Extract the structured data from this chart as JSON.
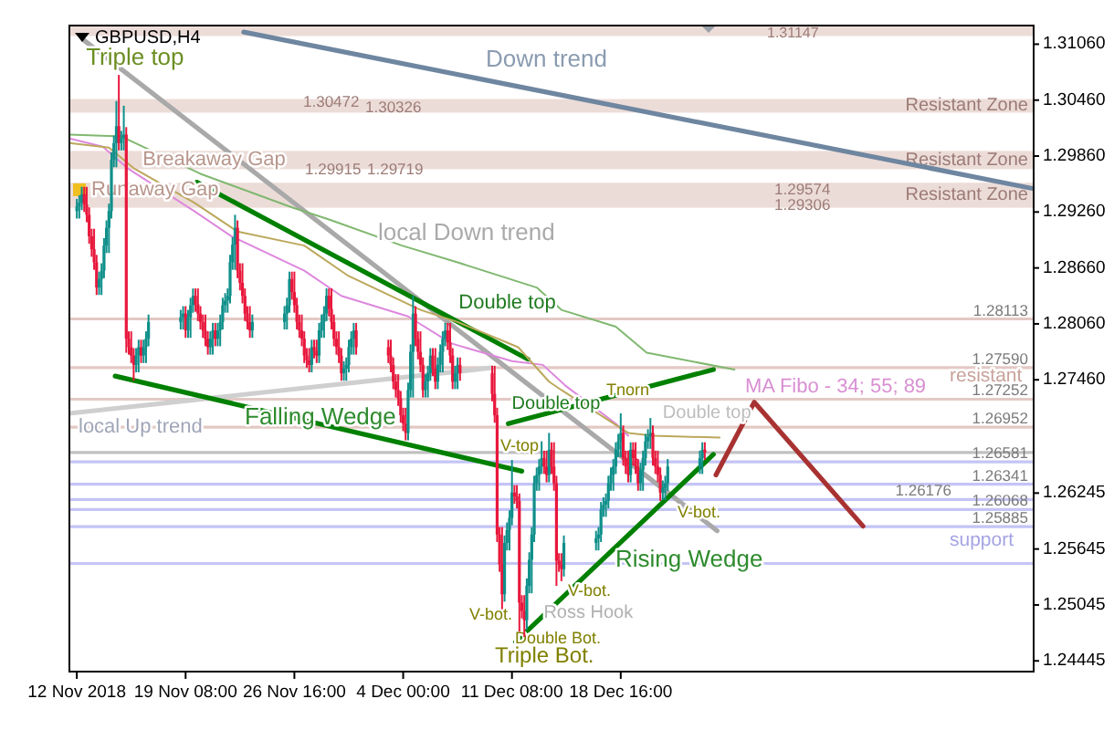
{
  "chart_data": {
    "type": "candlestick",
    "title": "GBPUSD,H4",
    "x": [
      "2018-11-12T00:00",
      "2018-11-12T04:00",
      "2018-11-12T08:00",
      "2018-11-12T12:00",
      "2018-11-12T16:00",
      "2018-11-12T20:00",
      "2018-11-13T00:00",
      "2018-11-13T04:00",
      "2018-11-13T08:00",
      "2018-11-13T12:00",
      "2018-11-13T16:00",
      "2018-11-13T20:00",
      "2018-11-14T00:00",
      "2018-11-14T04:00",
      "2018-11-14T08:00",
      "2018-11-14T12:00",
      "2018-11-14T16:00",
      "2018-11-14T20:00",
      "2018-11-15T00:00",
      "2018-11-15T04:00",
      "2018-11-15T08:00",
      "2018-11-15T12:00",
      "2018-11-15T16:00",
      "2018-11-15T20:00",
      "2018-11-16T00:00",
      "2018-11-16T04:00",
      "2018-11-16T08:00",
      "2018-11-16T12:00",
      "2018-11-16T16:00",
      "2018-11-16T20:00",
      "2018-11-19T00:00",
      "2018-11-19T04:00",
      "2018-11-19T08:00",
      "2018-11-19T12:00",
      "2018-11-19T16:00",
      "2018-11-19T20:00",
      "2018-11-20T00:00",
      "2018-11-20T04:00",
      "2018-11-20T08:00",
      "2018-11-20T12:00",
      "2018-11-20T16:00",
      "2018-11-20T20:00",
      "2018-11-21T00:00",
      "2018-11-21T04:00",
      "2018-11-21T08:00",
      "2018-11-21T12:00",
      "2018-11-21T16:00",
      "2018-11-21T20:00",
      "2018-11-22T00:00",
      "2018-11-22T04:00",
      "2018-11-22T08:00",
      "2018-11-22T12:00",
      "2018-11-22T16:00",
      "2018-11-22T20:00",
      "2018-11-23T00:00",
      "2018-11-23T04:00",
      "2018-11-23T08:00",
      "2018-11-23T12:00",
      "2018-11-23T16:00",
      "2018-11-23T20:00",
      "2018-11-26T00:00",
      "2018-11-26T04:00",
      "2018-11-26T08:00",
      "2018-11-26T12:00",
      "2018-11-26T16:00",
      "2018-11-26T20:00",
      "2018-11-27T00:00",
      "2018-11-27T04:00",
      "2018-11-27T08:00",
      "2018-11-27T12:00",
      "2018-11-27T16:00",
      "2018-11-27T20:00",
      "2018-11-28T00:00",
      "2018-11-28T04:00",
      "2018-11-28T08:00",
      "2018-11-28T12:00",
      "2018-11-28T16:00",
      "2018-11-28T20:00",
      "2018-11-29T00:00",
      "2018-11-29T04:00",
      "2018-11-29T08:00",
      "2018-11-29T12:00",
      "2018-11-29T16:00",
      "2018-11-29T20:00",
      "2018-11-30T00:00",
      "2018-11-30T04:00",
      "2018-11-30T08:00",
      "2018-11-30T12:00",
      "2018-11-30T16:00",
      "2018-11-30T20:00",
      "2018-12-03T00:00",
      "2018-12-03T04:00",
      "2018-12-03T08:00",
      "2018-12-03T12:00",
      "2018-12-03T16:00",
      "2018-12-03T20:00",
      "2018-12-04T00:00",
      "2018-12-04T04:00",
      "2018-12-04T08:00",
      "2018-12-04T12:00",
      "2018-12-04T16:00",
      "2018-12-04T20:00",
      "2018-12-05T00:00",
      "2018-12-05T04:00",
      "2018-12-05T08:00",
      "2018-12-05T12:00",
      "2018-12-05T16:00",
      "2018-12-05T20:00",
      "2018-12-06T00:00",
      "2018-12-06T04:00",
      "2018-12-06T08:00",
      "2018-12-06T12:00",
      "2018-12-06T16:00",
      "2018-12-06T20:00",
      "2018-12-07T00:00",
      "2018-12-07T04:00",
      "2018-12-07T08:00",
      "2018-12-07T12:00",
      "2018-12-07T16:00",
      "2018-12-07T20:00",
      "2018-12-10T00:00",
      "2018-12-10T04:00",
      "2018-12-10T08:00",
      "2018-12-10T12:00",
      "2018-12-10T16:00",
      "2018-12-10T20:00",
      "2018-12-11T00:00",
      "2018-12-11T04:00",
      "2018-12-11T08:00",
      "2018-12-11T12:00",
      "2018-12-11T16:00",
      "2018-12-11T20:00",
      "2018-12-12T00:00",
      "2018-12-12T04:00",
      "2018-12-12T08:00",
      "2018-12-12T12:00",
      "2018-12-12T16:00",
      "2018-12-12T20:00",
      "2018-12-13T00:00",
      "2018-12-13T04:00",
      "2018-12-13T08:00",
      "2018-12-13T12:00",
      "2018-12-13T16:00",
      "2018-12-13T20:00",
      "2018-12-14T00:00",
      "2018-12-14T04:00",
      "2018-12-14T08:00",
      "2018-12-14T12:00",
      "2018-12-14T16:00",
      "2018-12-14T20:00",
      "2018-12-17T00:00",
      "2018-12-17T04:00",
      "2018-12-17T08:00",
      "2018-12-17T12:00",
      "2018-12-17T16:00",
      "2018-12-17T20:00",
      "2018-12-18T00:00",
      "2018-12-18T04:00",
      "2018-12-18T08:00",
      "2018-12-18T12:00",
      "2018-12-18T16:00",
      "2018-12-18T20:00",
      "2018-12-19T00:00",
      "2018-12-19T04:00",
      "2018-12-19T08:00",
      "2018-12-19T12:00",
      "2018-12-19T16:00",
      "2018-12-19T20:00",
      "2018-12-20T00:00",
      "2018-12-20T04:00",
      "2018-12-20T08:00",
      "2018-12-20T12:00",
      "2018-12-20T16:00",
      "2018-12-20T20:00",
      "2018-12-21T00:00",
      "2018-12-21T04:00",
      "2018-12-21T08:00",
      "2018-12-21T12:00",
      "2018-12-21T16:00",
      "2018-12-21T20:00",
      "2018-12-24T00:00",
      "2018-12-24T04:00",
      "2018-12-24T08:00"
    ],
    "ohlc": [
      [
        1.2927,
        1.294,
        1.2919,
        1.2932
      ],
      [
        1.2932,
        1.2944,
        1.2919,
        1.2936
      ],
      [
        1.2936,
        1.2953,
        1.2928,
        1.2945
      ],
      [
        1.2945,
        1.2953,
        1.2926,
        1.2934
      ],
      [
        1.2934,
        1.2953,
        1.2915,
        1.2923
      ],
      [
        1.2923,
        1.2931,
        1.2892,
        1.29
      ],
      [
        1.29,
        1.2908,
        1.2878,
        1.2886
      ],
      [
        1.2886,
        1.2908,
        1.2864,
        1.2872
      ],
      [
        1.2872,
        1.288,
        1.2837,
        1.2845
      ],
      [
        1.2845,
        1.2862,
        1.2837,
        1.2854
      ],
      [
        1.2854,
        1.2871,
        1.2837,
        1.2863
      ],
      [
        1.2863,
        1.2898,
        1.2855,
        1.289
      ],
      [
        1.289,
        1.2917,
        1.2882,
        1.2909
      ],
      [
        1.2909,
        1.2935,
        1.2882,
        1.2927
      ],
      [
        1.2927,
        1.299,
        1.2919,
        1.2982
      ],
      [
        1.2982,
        1.3008,
        1.2974,
        1.3
      ],
      [
        1.3,
        1.3045,
        1.2974,
        1.3018
      ],
      [
        1.3018,
        1.3073,
        1.2992,
        1.3
      ],
      [
        1.3,
        1.3013,
        1.2992,
        1.3005
      ],
      [
        1.3005,
        1.304,
        1.2992,
        1.3009
      ],
      [
        1.3009,
        1.3017,
        1.2775,
        1.279
      ],
      [
        1.279,
        1.2798,
        1.2773,
        1.2781
      ],
      [
        1.2781,
        1.2798,
        1.2764,
        1.2772
      ],
      [
        1.2772,
        1.278,
        1.2745,
        1.2762
      ],
      [
        1.2762,
        1.278,
        1.2754,
        1.2772
      ],
      [
        1.2772,
        1.2789,
        1.2754,
        1.2781
      ],
      [
        1.2781,
        1.2789,
        1.2764,
        1.2772
      ],
      [
        1.2772,
        1.2789,
        1.2764,
        1.2781
      ],
      [
        1.2781,
        1.2798,
        1.2764,
        1.279
      ],
      [
        1.279,
        1.2816,
        1.2782,
        1.2808
      ],
      [
        1.2808,
        1.2821,
        1.28,
        1.2813
      ],
      [
        1.2813,
        1.2825,
        1.28,
        1.2817
      ],
      [
        1.2817,
        1.2825,
        1.2791,
        1.2799
      ],
      [
        1.2799,
        1.2821,
        1.2791,
        1.2813
      ],
      [
        1.2813,
        1.2834,
        1.2791,
        1.2826
      ],
      [
        1.2826,
        1.2844,
        1.2818,
        1.2836
      ],
      [
        1.2836,
        1.2844,
        1.2819,
        1.2827
      ],
      [
        1.2827,
        1.2844,
        1.2809,
        1.2817
      ],
      [
        1.2817,
        1.2825,
        1.28,
        1.2808
      ],
      [
        1.2808,
        1.2816,
        1.2791,
        1.2799
      ],
      [
        1.2799,
        1.2816,
        1.2782,
        1.279
      ],
      [
        1.279,
        1.2798,
        1.2773,
        1.2781
      ],
      [
        1.2781,
        1.2798,
        1.2773,
        1.279
      ],
      [
        1.279,
        1.2807,
        1.2773,
        1.2799
      ],
      [
        1.2799,
        1.2807,
        1.2782,
        1.279
      ],
      [
        1.279,
        1.2807,
        1.2782,
        1.2799
      ],
      [
        1.2799,
        1.2816,
        1.2782,
        1.2808
      ],
      [
        1.2808,
        1.2834,
        1.28,
        1.2826
      ],
      [
        1.2826,
        1.2839,
        1.2818,
        1.2831
      ],
      [
        1.2831,
        1.2844,
        1.2818,
        1.2836
      ],
      [
        1.2836,
        1.288,
        1.2828,
        1.2872
      ],
      [
        1.2872,
        1.2899,
        1.2864,
        1.2891
      ],
      [
        1.2891,
        1.2923,
        1.2864,
        1.2909
      ],
      [
        1.2909,
        1.2917,
        1.2855,
        1.2863
      ],
      [
        1.2863,
        1.2871,
        1.2842,
        1.285
      ],
      [
        1.285,
        1.2871,
        1.2828,
        1.2836
      ],
      [
        1.2836,
        1.2844,
        1.2809,
        1.2817
      ],
      [
        1.2817,
        1.2825,
        1.28,
        1.2808
      ],
      [
        1.2808,
        1.2825,
        1.2791,
        1.2799
      ],
      [
        1.2799,
        1.2816,
        1.2791,
        1.2808
      ],
      [
        1.2808,
        1.2825,
        1.28,
        1.2817
      ],
      [
        1.2817,
        1.2834,
        1.28,
        1.2826
      ],
      [
        1.2826,
        1.2862,
        1.2818,
        1.2854
      ],
      [
        1.2854,
        1.2862,
        1.2832,
        1.284
      ],
      [
        1.284,
        1.2862,
        1.2818,
        1.2826
      ],
      [
        1.2826,
        1.2834,
        1.28,
        1.2808
      ],
      [
        1.2808,
        1.2816,
        1.2791,
        1.2799
      ],
      [
        1.2799,
        1.2816,
        1.2782,
        1.279
      ],
      [
        1.279,
        1.2798,
        1.2764,
        1.2772
      ],
      [
        1.2772,
        1.278,
        1.2759,
        1.2767
      ],
      [
        1.2767,
        1.278,
        1.2754,
        1.2762
      ],
      [
        1.2762,
        1.2789,
        1.2754,
        1.2781
      ],
      [
        1.2781,
        1.2789,
        1.2769,
        1.2777
      ],
      [
        1.2777,
        1.2789,
        1.2764,
        1.2772
      ],
      [
        1.2772,
        1.2807,
        1.2764,
        1.2799
      ],
      [
        1.2799,
        1.2816,
        1.2791,
        1.2808
      ],
      [
        1.2808,
        1.2825,
        1.2791,
        1.2817
      ],
      [
        1.2817,
        1.2844,
        1.2809,
        1.2836
      ],
      [
        1.2836,
        1.2844,
        1.2814,
        1.2822
      ],
      [
        1.2822,
        1.2844,
        1.28,
        1.2808
      ],
      [
        1.2808,
        1.2816,
        1.2782,
        1.279
      ],
      [
        1.279,
        1.2798,
        1.2773,
        1.2781
      ],
      [
        1.2781,
        1.2798,
        1.2764,
        1.2772
      ],
      [
        1.2772,
        1.278,
        1.2745,
        1.2753
      ],
      [
        1.2753,
        1.2766,
        1.2745,
        1.2758
      ],
      [
        1.2758,
        1.277,
        1.2745,
        1.2762
      ],
      [
        1.2762,
        1.2789,
        1.2754,
        1.2781
      ],
      [
        1.2781,
        1.2798,
        1.2773,
        1.279
      ],
      [
        1.279,
        1.2807,
        1.2773,
        1.2799
      ],
      [
        1.2799,
        1.2807,
        1.2773,
        1.2781
      ],
      [
        1.2781,
        1.2789,
        1.2764,
        1.2772
      ],
      [
        1.2772,
        1.2789,
        1.2754,
        1.2762
      ],
      [
        1.2762,
        1.277,
        1.2736,
        1.2744
      ],
      [
        1.2744,
        1.2752,
        1.2727,
        1.2735
      ],
      [
        1.2735,
        1.2752,
        1.2718,
        1.2726
      ],
      [
        1.2726,
        1.2734,
        1.27,
        1.2708
      ],
      [
        1.2708,
        1.2716,
        1.2691,
        1.2699
      ],
      [
        1.2699,
        1.2716,
        1.2681,
        1.2689
      ],
      [
        1.2689,
        1.2743,
        1.2681,
        1.2735
      ],
      [
        1.2735,
        1.2784,
        1.2727,
        1.2776
      ],
      [
        1.2776,
        1.2836,
        1.2727,
        1.2817
      ],
      [
        1.2817,
        1.2825,
        1.2782,
        1.279
      ],
      [
        1.279,
        1.2798,
        1.2768,
        1.2776
      ],
      [
        1.2776,
        1.2798,
        1.2754,
        1.2762
      ],
      [
        1.2762,
        1.277,
        1.2727,
        1.2735
      ],
      [
        1.2735,
        1.2752,
        1.2727,
        1.2744
      ],
      [
        1.2744,
        1.2761,
        1.2727,
        1.2753
      ],
      [
        1.2753,
        1.278,
        1.2745,
        1.2772
      ],
      [
        1.2772,
        1.278,
        1.275,
        1.2758
      ],
      [
        1.2758,
        1.278,
        1.2736,
        1.2744
      ],
      [
        1.2744,
        1.277,
        1.2736,
        1.2762
      ],
      [
        1.2762,
        1.2784,
        1.2754,
        1.2776
      ],
      [
        1.2776,
        1.2798,
        1.2754,
        1.279
      ],
      [
        1.279,
        1.2807,
        1.2782,
        1.2799
      ],
      [
        1.2799,
        1.2807,
        1.2778,
        1.2786
      ],
      [
        1.2786,
        1.2807,
        1.2764,
        1.2772
      ],
      [
        1.2772,
        1.278,
        1.2736,
        1.2744
      ],
      [
        1.2744,
        1.2761,
        1.2736,
        1.2753
      ],
      [
        1.2753,
        1.277,
        1.2736,
        1.2762
      ],
      [
        1.2762,
        1.277,
        1.2745,
        1.2753
      ],
      [
        1.2753,
        1.2761,
        1.2723,
        1.2731
      ],
      [
        1.2731,
        1.2761,
        1.27,
        1.2708
      ],
      [
        1.2708,
        1.2716,
        1.2572,
        1.258
      ],
      [
        1.258,
        1.2588,
        1.254,
        1.2548
      ],
      [
        1.2548,
        1.2588,
        1.25,
        1.2516
      ],
      [
        1.2516,
        1.2579,
        1.2508,
        1.2571
      ],
      [
        1.2571,
        1.2593,
        1.2563,
        1.2585
      ],
      [
        1.2585,
        1.2606,
        1.2563,
        1.2598
      ],
      [
        1.2598,
        1.266,
        1.259,
        1.2625
      ],
      [
        1.2625,
        1.2633,
        1.2613,
        1.2621
      ],
      [
        1.2621,
        1.2633,
        1.2608,
        1.2616
      ],
      [
        1.2616,
        1.2624,
        1.2476,
        1.2507
      ],
      [
        1.2507,
        1.2515,
        1.249,
        1.2498
      ],
      [
        1.2498,
        1.2515,
        1.247,
        1.2488
      ],
      [
        1.2488,
        1.2533,
        1.2478,
        1.2525
      ],
      [
        1.2525,
        1.2561,
        1.2517,
        1.2553
      ],
      [
        1.2553,
        1.2588,
        1.2517,
        1.258
      ],
      [
        1.258,
        1.2643,
        1.2572,
        1.2635
      ],
      [
        1.2635,
        1.2652,
        1.2627,
        1.2644
      ],
      [
        1.2644,
        1.2661,
        1.2627,
        1.2653
      ],
      [
        1.2653,
        1.268,
        1.2645,
        1.2662
      ],
      [
        1.2662,
        1.267,
        1.2645,
        1.2653
      ],
      [
        1.2653,
        1.267,
        1.2636,
        1.2644
      ],
      [
        1.2644,
        1.2689,
        1.2636,
        1.2671
      ],
      [
        1.2671,
        1.2679,
        1.2645,
        1.2653
      ],
      [
        1.2653,
        1.2679,
        1.2627,
        1.2635
      ],
      [
        1.2635,
        1.2643,
        1.2525,
        1.2552
      ],
      [
        1.2552,
        1.256,
        1.254,
        1.2548
      ],
      [
        1.2548,
        1.256,
        1.253,
        1.2543
      ],
      [
        1.2543,
        1.2579,
        1.2535,
        1.2571
      ],
      [
        1.2571,
        1.2584,
        1.2563,
        1.2576
      ],
      [
        1.2576,
        1.2588,
        1.2563,
        1.258
      ],
      [
        1.258,
        1.2615,
        1.2572,
        1.2607
      ],
      [
        1.2607,
        1.262,
        1.2599,
        1.2612
      ],
      [
        1.2612,
        1.2624,
        1.2599,
        1.2616
      ],
      [
        1.2616,
        1.2643,
        1.2608,
        1.2635
      ],
      [
        1.2635,
        1.2652,
        1.2627,
        1.2644
      ],
      [
        1.2644,
        1.2661,
        1.2627,
        1.2653
      ],
      [
        1.2653,
        1.2679,
        1.2645,
        1.2671
      ],
      [
        1.2671,
        1.2688,
        1.2663,
        1.268
      ],
      [
        1.268,
        1.271,
        1.2663,
        1.2689
      ],
      [
        1.2689,
        1.2697,
        1.2654,
        1.2662
      ],
      [
        1.2662,
        1.267,
        1.2645,
        1.2653
      ],
      [
        1.2653,
        1.267,
        1.2636,
        1.2644
      ],
      [
        1.2644,
        1.2679,
        1.2636,
        1.2671
      ],
      [
        1.2671,
        1.2679,
        1.2654,
        1.2662
      ],
      [
        1.2662,
        1.2679,
        1.2645,
        1.2653
      ],
      [
        1.2653,
        1.2661,
        1.2627,
        1.2635
      ],
      [
        1.2635,
        1.2657,
        1.2627,
        1.2649
      ],
      [
        1.2649,
        1.267,
        1.2627,
        1.2662
      ],
      [
        1.2662,
        1.2688,
        1.2654,
        1.268
      ],
      [
        1.268,
        1.2693,
        1.2672,
        1.2685
      ],
      [
        1.2685,
        1.2705,
        1.2672,
        1.2689
      ],
      [
        1.2689,
        1.2697,
        1.2654,
        1.2662
      ],
      [
        1.2662,
        1.267,
        1.2645,
        1.2653
      ],
      [
        1.2653,
        1.267,
        1.2636,
        1.2644
      ],
      [
        1.2644,
        1.2652,
        1.2616,
        1.2625
      ],
      [
        1.2625,
        1.2638,
        1.2617,
        1.263
      ],
      [
        1.263,
        1.2643,
        1.2617,
        1.2635
      ],
      [
        1.2635,
        1.2661,
        1.2627,
        1.2653
      ],
      [
        1.2653,
        1.267,
        1.2645,
        1.2662
      ],
      [
        1.2662,
        1.2679,
        1.2645,
        1.2671
      ],
      [
        1.2671,
        1.2679,
        1.266,
        1.2668
      ]
    ],
    "series": [
      {
        "type": "line",
        "color": "#6e86a0",
        "x": [
          "2018-11-23T06:00",
          "2019-01-15T12:00"
        ],
        "values": [
          1.3119,
          1.2951
        ]
      },
      {
        "type": "line",
        "color": "#a9a9a9",
        "x": [
          "2018-11-12T12:00",
          "2018-12-25T04:00"
        ],
        "values": [
          1.311,
          1.2584
        ]
      },
      {
        "type": "line",
        "color": "#cfcfcf",
        "x": [
          "2018-11-11T12:00",
          "2018-12-10T00:00"
        ],
        "values": [
          1.271,
          1.2759
        ]
      },
      {
        "type": "line",
        "color": "#008000",
        "x": [
          "2018-11-20T02:00",
          "2018-12-12T10:00"
        ],
        "values": [
          1.2958,
          1.2768
        ]
      },
      {
        "type": "line",
        "color": "#008000",
        "x": [
          "2018-11-14T14:00",
          "2018-12-12T00:00"
        ],
        "values": [
          1.275,
          1.2648
        ]
      },
      {
        "type": "line",
        "color": "#008000",
        "x": [
          "2018-12-11T02:00",
          "2018-12-24T22:00"
        ],
        "values": [
          1.2699,
          1.2757
        ]
      },
      {
        "type": "line",
        "color": "#008000",
        "x": [
          "2018-12-11T14:00",
          "2018-12-24T22:00"
        ],
        "values": [
          1.2465,
          1.2666
        ]
      },
      {
        "type": "line",
        "color": "#a83232",
        "x": [
          "2018-12-25T02:00",
          "2018-12-27T16:00",
          "2019-01-04T00:00"
        ],
        "values": [
          1.2644,
          1.2722,
          1.2589
        ]
      },
      {
        "type": "line",
        "color": "#dd88dd",
        "x": [
          "2018-11-11T12:00",
          "2018-11-13T18:00",
          "2018-11-15T10:00",
          "2018-11-19T22:00",
          "2018-11-22T10:00",
          "2018-11-27T08:00",
          "2018-11-29T20:00",
          "2018-12-04T08:00",
          "2018-12-07T06:00",
          "2018-12-11T08:00",
          "2018-12-13T10:00",
          "2018-12-14T22:00",
          "2018-12-18T08:00",
          "2018-12-19T04:00"
        ],
        "values": [
          1.3005,
          1.2996,
          1.2973,
          1.2927,
          1.29,
          1.2863,
          1.2836,
          1.2814,
          1.2785,
          1.2766,
          1.2762,
          1.274,
          1.2699,
          1.2686
        ]
      },
      {
        "type": "line",
        "color": "#bca85c",
        "x": [
          "2018-11-11T12:00",
          "2018-11-14T04:00",
          "2018-11-15T20:00",
          "2018-11-19T22:00",
          "2018-11-22T20:00",
          "2018-11-27T08:00",
          "2018-11-30T06:00",
          "2018-12-05T04:00",
          "2018-12-07T16:00",
          "2018-12-11T18:00",
          "2018-12-13T20:00",
          "2018-12-14T16:00",
          "2018-12-19T04:00",
          "2018-12-20T20:00",
          "2018-12-25T08:00"
        ],
        "values": [
          1.3,
          1.2995,
          1.2973,
          1.2936,
          1.2905,
          1.289,
          1.2858,
          1.2821,
          1.2808,
          1.2781,
          1.2744,
          1.2735,
          1.2689,
          1.2686,
          1.2684
        ]
      },
      {
        "type": "line",
        "color": "#80b870",
        "x": [
          "2018-11-11T12:00",
          "2018-11-15T00:00",
          "2018-11-20T08:00",
          "2018-11-26T12:00",
          "2018-11-29T00:00",
          "2018-12-03T22:00",
          "2018-12-07T16:00",
          "2018-12-13T00:00",
          "2018-12-14T16:00",
          "2018-12-18T08:00",
          "2018-12-20T10:00",
          "2018-12-26T08:00"
        ],
        "values": [
          1.3009,
          1.3007,
          1.2967,
          1.2931,
          1.2918,
          1.289,
          1.2872,
          1.2845,
          1.2821,
          1.2803,
          1.2775,
          1.2757
        ]
      }
    ],
    "bands": [
      {
        "axis": "y",
        "from": 1.31147,
        "to": 1.3126,
        "color": "#ecdcd8"
      },
      {
        "axis": "y",
        "from": 1.30326,
        "to": 1.30472,
        "label": "Resistant Zone",
        "color": "#ecdcd8"
      },
      {
        "axis": "y",
        "from": 1.29719,
        "to": 1.29915,
        "label": "Resistant Zone",
        "color": "#ecdcd8"
      },
      {
        "axis": "y",
        "from": 1.29306,
        "to": 1.29574,
        "label": "Resistant Zone",
        "color": "#ecdcd8"
      }
    ],
    "ref_lines": [
      {
        "axis": "y",
        "value": 1.28113,
        "label": "1.28113",
        "color": "#e3c9c4"
      },
      {
        "axis": "y",
        "value": 1.2759,
        "label": "1.27590",
        "color": "#e3c9c4"
      },
      {
        "axis": "y",
        "value": 1.27252,
        "label": "1.27252",
        "color": "#e3c9c4"
      },
      {
        "axis": "y",
        "value": 1.26952,
        "label": "1.26952",
        "color": "#e3c9c4"
      },
      {
        "axis": "y",
        "value": 1.2668,
        "color": "#c0c0c0"
      },
      {
        "axis": "y",
        "value": 1.26581,
        "label": "1.26581",
        "color": "#c4c4f6"
      },
      {
        "axis": "y",
        "value": 1.26341,
        "label": "1.26341",
        "color": "#c4c4f6"
      },
      {
        "axis": "y",
        "value": 1.26176,
        "label": "1.26176",
        "color": "#c4c4f6"
      },
      {
        "axis": "y",
        "value": 1.26068,
        "label": "1.26068",
        "color": "#c4c4f6"
      },
      {
        "axis": "y",
        "value": 1.25885,
        "label": "1.25885",
        "color": "#c4c4f6"
      },
      {
        "axis": "y",
        "value": 1.2549,
        "color": "#c4c4f6"
      }
    ],
    "annotations": [
      {
        "text": "Triple top",
        "x": "2018-11-14T20:00",
        "y": 1.3073
      },
      "Down trend",
      {
        "text": "Breakaway Gap",
        "x": "2018-11-15T08:00",
        "y": 1.2982
      },
      {
        "text": "Runaway Gap",
        "x": "2018-11-12T00:00",
        "y": 1.2944
      },
      "local Down trend",
      {
        "text": "Double top",
        "x": "2018-12-04T16:00",
        "y": 1.2836
      },
      "Falling Wedge",
      "local Up trend",
      {
        "text": "Double top",
        "x": "2018-12-11T02:00",
        "y": 1.2699
      },
      "Tnorn",
      {
        "text": "Double top",
        "x": "2018-12-18T16:00",
        "y": 1.271
      },
      "V-top",
      "V-bot.",
      "Double Bot.",
      "Triple Bot.",
      "V-bot.",
      {
        "text": "Ross Hook",
        "x": "2018-12-14T08:00",
        "y": 1.2525
      },
      "V-bot.",
      "Rising Wedge",
      "MA Fibo - 34; 55; 89",
      "resistant",
      "support",
      "1.30472",
      "1.30326",
      "1.29915",
      "1.29719",
      "1.29574",
      "1.29306",
      "1.31147"
    ],
    "xlim": [
      "2018-11-11T12:00",
      "2019-01-15T12:00"
    ],
    "xticks": [
      {
        "value": "2018-11-12T00:00",
        "label": "12 Nov 2018"
      },
      {
        "value": "2018-11-19T08:00",
        "label": "19 Nov 08:00"
      },
      {
        "value": "2018-11-26T16:00",
        "label": "26 Nov 16:00"
      },
      {
        "value": "2018-12-04T00:00",
        "label": "4 Dec 00:00"
      },
      {
        "value": "2018-12-11T08:00",
        "label": "11 Dec 08:00"
      },
      {
        "value": "2018-12-18T16:00",
        "label": "18 Dec 16:00"
      }
    ],
    "ylim": [
      1.2433,
      1.3126
    ],
    "yticks": [
      {
        "value": 1.3106,
        "label": "1.31060"
      },
      {
        "value": 1.3046,
        "label": "1.30460"
      },
      {
        "value": 1.2986,
        "label": "1.29860"
      },
      {
        "value": 1.2926,
        "label": "1.29260"
      },
      {
        "value": 1.2866,
        "label": "1.28660"
      },
      {
        "value": 1.2806,
        "label": "1.28060"
      },
      {
        "value": 1.2746,
        "label": "1.27460"
      },
      1.26245,
      1.25645,
      1.25045,
      1.24445
    ]
  }
}
